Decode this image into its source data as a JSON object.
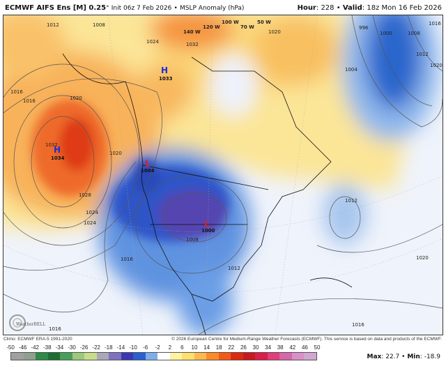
{
  "header": {
    "model": "ECMWF AIFS Ens [M] 0.25",
    "degree": "°",
    "init": "Init 06z 7 Feb 2026",
    "sep": "•",
    "field": "MSLP Anomaly (hPa)",
    "hour_label": "Hour",
    "hour": "228",
    "valid_label": "Valid",
    "valid": "18z Mon 16 Feb 2026"
  },
  "map": {
    "centers": [
      {
        "type": "H",
        "value": "1034",
        "color": "#1a2fd8"
      },
      {
        "type": "H",
        "value": "1033",
        "color": "#1a2fd8"
      },
      {
        "type": "L",
        "value": "1004",
        "color": "#e0201a"
      },
      {
        "type": "L",
        "value": "1000",
        "color": "#e0201a"
      }
    ],
    "contour_labels": [
      "1012",
      "1008",
      "1016",
      "1016",
      "1020",
      "1032",
      "1028",
      "1024",
      "1024",
      "1020",
      "1032",
      "1020",
      "1004",
      "996",
      "1000",
      "1008",
      "1012",
      "1016",
      "1020",
      "1012",
      "1016",
      "1012",
      "1008",
      "1020",
      "1016",
      "1016",
      "1024"
    ],
    "longitude_labels": [
      "140 W",
      "120 W",
      "100 W",
      "70 W",
      "50 W"
    ],
    "logo": "WeatherBELL"
  },
  "footer": {
    "climo": "Climo: ECMWF ERA-5 1991-2020",
    "copyright": "© 2026 European Centre for Medium-Range Weather Forecasts (ECMWF). This service is based on data and products of the ECMWF."
  },
  "colorbar": {
    "ticks": [
      "-50",
      "-46",
      "-42",
      "-38",
      "-34",
      "-30",
      "-26",
      "-22",
      "-18",
      "-14",
      "-10",
      "-6",
      "-2",
      "2",
      "6",
      "10",
      "14",
      "18",
      "22",
      "26",
      "30",
      "34",
      "38",
      "42",
      "46",
      "50"
    ],
    "colors": [
      "#a0a0a0",
      "#8fa08f",
      "#2f8a45",
      "#1e6e34",
      "#4a9e5a",
      "#9cc87a",
      "#c8dc8a",
      "#a8a8b8",
      "#8070c0",
      "#3a3ab0",
      "#2a60d0",
      "#7eaeea",
      "#ffffff",
      "#fff2a0",
      "#fde070",
      "#fdb850",
      "#fb8a2a",
      "#f25a18",
      "#dc2a10",
      "#c81820",
      "#d8204a",
      "#e0407a",
      "#d468a8",
      "#d890c8",
      "#d0a8d0"
    ]
  },
  "stats": {
    "max_label": "Max",
    "max": "22.7",
    "min_label": "Min",
    "min": "-18.9"
  }
}
